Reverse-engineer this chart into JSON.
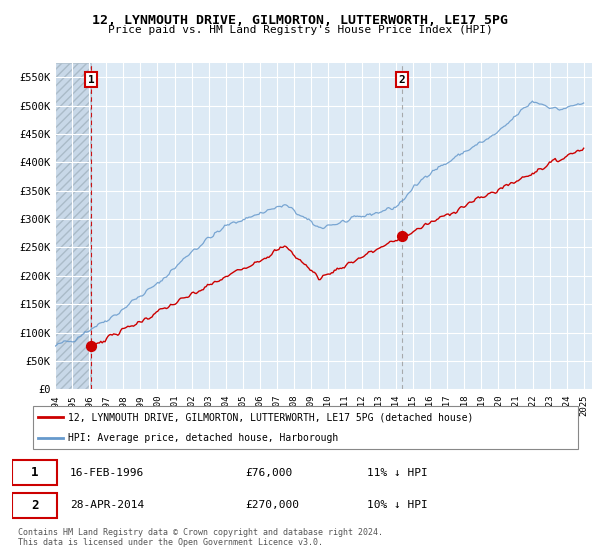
{
  "title": "12, LYNMOUTH DRIVE, GILMORTON, LUTTERWORTH, LE17 5PG",
  "subtitle": "Price paid vs. HM Land Registry's House Price Index (HPI)",
  "ylim": [
    0,
    575000
  ],
  "yticks": [
    0,
    50000,
    100000,
    150000,
    200000,
    250000,
    300000,
    350000,
    400000,
    450000,
    500000,
    550000
  ],
  "ytick_labels": [
    "£0",
    "£50K",
    "£100K",
    "£150K",
    "£200K",
    "£250K",
    "£300K",
    "£350K",
    "£400K",
    "£450K",
    "£500K",
    "£550K"
  ],
  "sale1_year": 1996.12,
  "sale1_price": 76000,
  "sale1_label": "1",
  "sale1_date": "16-FEB-1996",
  "sale1_amount": "£76,000",
  "sale1_hpi": "11% ↓ HPI",
  "sale2_year": 2014.33,
  "sale2_price": 270000,
  "sale2_label": "2",
  "sale2_date": "28-APR-2014",
  "sale2_amount": "£270,000",
  "sale2_hpi": "10% ↓ HPI",
  "line_color_price": "#cc0000",
  "line_color_hpi": "#6699cc",
  "background_plot": "#ddeaf5",
  "background_hatch": "#c8d8e8",
  "grid_color": "#c0cdd8",
  "dashed_line1_color": "#cc0000",
  "dashed_line2_color": "#999999",
  "legend_label1": "12, LYNMOUTH DRIVE, GILMORTON, LUTTERWORTH, LE17 5PG (detached house)",
  "legend_label2": "HPI: Average price, detached house, Harborough",
  "footnote": "Contains HM Land Registry data © Crown copyright and database right 2024.\nThis data is licensed under the Open Government Licence v3.0.",
  "xmin": 1994,
  "xmax": 2025.5
}
